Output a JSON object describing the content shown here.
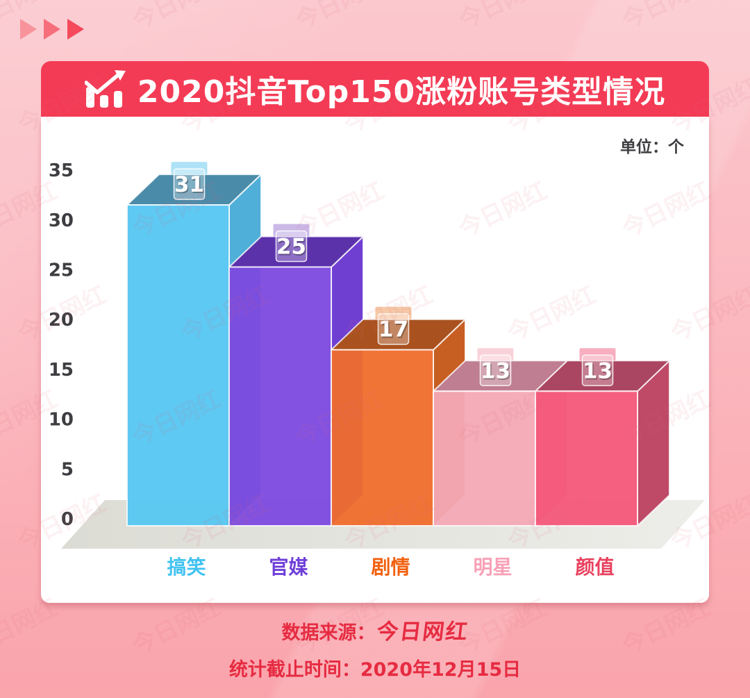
{
  "header": {
    "title": "2020抖音Top150涨粉账号类型情况",
    "icon": "bar-chart-arrow-icon"
  },
  "meta": {
    "unit_label": "单位：个"
  },
  "chart_data": {
    "type": "bar",
    "title": "2020抖音Top150涨粉账号类型情况",
    "categories": [
      "搞笑",
      "官媒",
      "剧情",
      "明星",
      "颜值"
    ],
    "values": [
      31,
      25,
      17,
      13,
      13
    ],
    "unit": "个",
    "xlabel": "",
    "ylabel": "",
    "ylim": [
      0,
      35
    ],
    "yticks": [
      0,
      5,
      10,
      15,
      20,
      25,
      30,
      35
    ],
    "grid": false,
    "legend": "none",
    "style": "3d-oblique",
    "bar_styles": [
      {
        "front": "#55C6F1",
        "top": "#4A8BA9",
        "side": "#4FAFD9",
        "tab": "#AEE2F7",
        "label": "#41C2F2"
      },
      {
        "front": "#7C49DF",
        "top": "#5C32AB",
        "side": "#6F3FD2",
        "tab": "#CBB9E8",
        "label": "#6F3FD8"
      },
      {
        "front": "#F06D2C",
        "top": "#A9521F",
        "side": "#C75E22",
        "tab": "#F6C9A6",
        "label": "#F2600E"
      },
      {
        "front": "#F4A9B6",
        "top": "#BF7E92",
        "side": "#E396A5",
        "tab": "#F9D2D9",
        "label": "#F8A0B6"
      },
      {
        "front": "#F4577A",
        "top": "#AB4662",
        "side": "#BE4A68",
        "tab": "#F7AFC0",
        "label": "#E8415E"
      }
    ]
  },
  "footer": {
    "source_prefix": "数据来源：",
    "source_logo": "今日网红",
    "deadline": "统计截止时间：2020年12月15日"
  },
  "watermark": {
    "text": "今日网红"
  },
  "colors": {
    "bg-top": "#FBC8CE",
    "bg-mid": "#FBB5BC",
    "bg-bottom": "#FAA4AC",
    "banner-red": "#F43B55",
    "card-white": "#FFFFFF",
    "footer-red": "#E62B41",
    "tick-gray": "#3E3E42",
    "floor-gray": "#DCDCD5",
    "floor-gray-light": "#EDEDE9",
    "watermark-pink": "rgba(222,105,120,0.09)",
    "tri-1": "#F8939C",
    "tri-2": "#F66E7B",
    "tri-3": "#F44A5C"
  }
}
